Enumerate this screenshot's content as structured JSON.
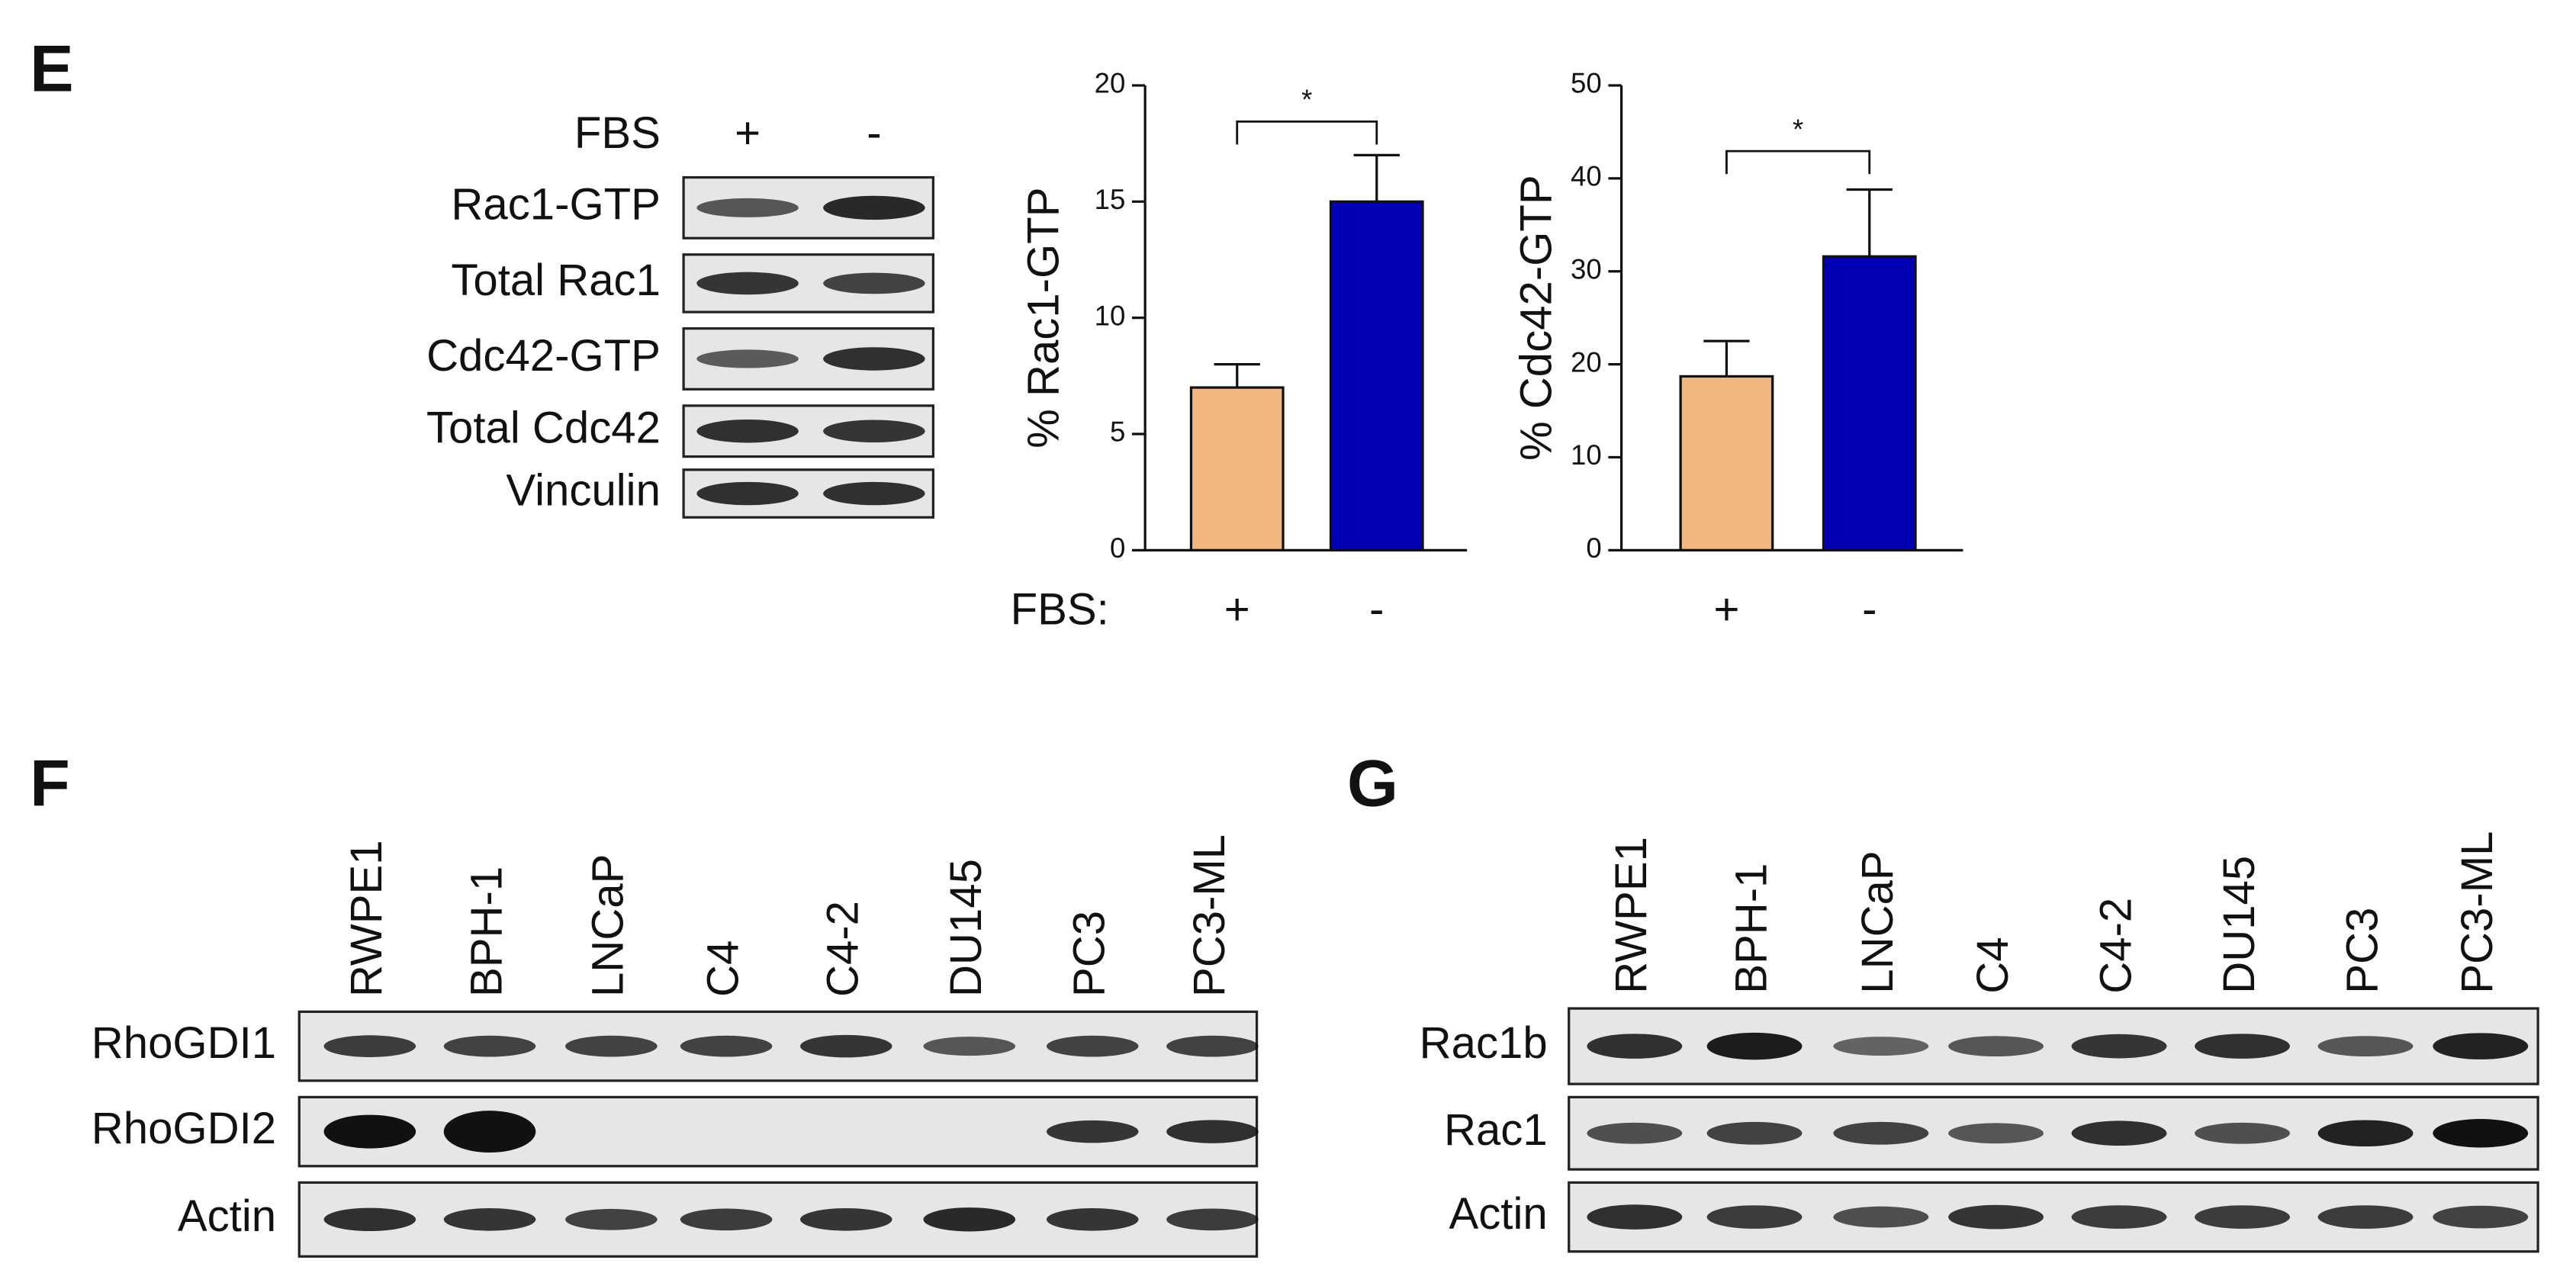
{
  "panels": {
    "E": {
      "label": "E",
      "treatment_label": "FBS",
      "lanes": [
        "+",
        "-"
      ],
      "rows": [
        "Rac1-GTP",
        "Total Rac1",
        "Cdc42-GTP",
        "Total Cdc42",
        "Vinculin"
      ]
    },
    "F": {
      "label": "F",
      "lanes": [
        "RWPE1",
        "BPH-1",
        "LNCaP",
        "C4",
        "C4-2",
        "DU145",
        "PC3",
        "PC3-ML"
      ],
      "rows": [
        "RhoGDI1",
        "RhoGDI2",
        "Actin"
      ]
    },
    "G": {
      "label": "G",
      "lanes": [
        "RWPE1",
        "BPH-1",
        "LNCaP",
        "C4",
        "C4-2",
        "DU145",
        "PC3",
        "PC3-ML"
      ],
      "rows": [
        "Rac1b",
        "Rac1",
        "Actin"
      ]
    }
  },
  "chart_data": [
    {
      "type": "bar",
      "ylabel": "% Rac1-GTP",
      "x_prefix": "FBS:",
      "categories": [
        "+",
        "-"
      ],
      "values": [
        7,
        15
      ],
      "errors": [
        1,
        2
      ],
      "colors": [
        "#f4b67f",
        "#0000b4"
      ],
      "ylim": [
        0,
        20
      ],
      "yticks": [
        0,
        5,
        10,
        15,
        20
      ],
      "significance": "*"
    },
    {
      "type": "bar",
      "ylabel": "% Cdc42-GTP",
      "categories": [
        "+",
        "-"
      ],
      "values": [
        18.7,
        31.6
      ],
      "errors": [
        3.8,
        7.2
      ],
      "colors": [
        "#f4b67f",
        "#0000b4"
      ],
      "ylim": [
        0,
        50
      ],
      "yticks": [
        0,
        10,
        20,
        30,
        40,
        50
      ],
      "significance": "*"
    }
  ]
}
